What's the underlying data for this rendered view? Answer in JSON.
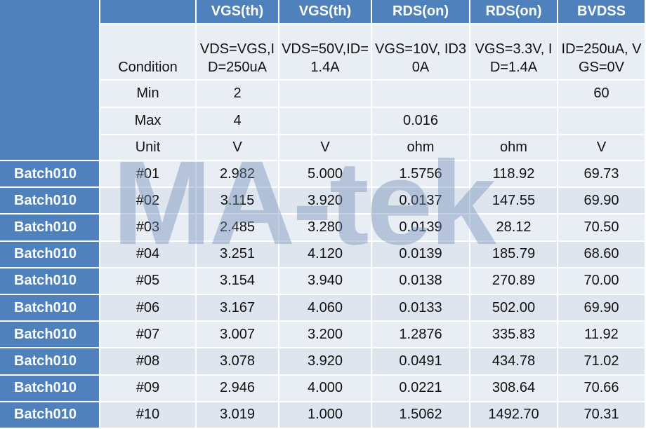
{
  "table": {
    "columns": [
      "VGS(th)",
      "VGS(th)",
      "RDS(on)",
      "RDS(on)",
      "BVDSS"
    ],
    "spec_rows": [
      {
        "label": "Condition",
        "cells": [
          "VDS=VGS,ID=250uA",
          "VDS=50V,ID=1.4A",
          "VGS=10V, ID30A",
          "VGS=3.3V, ID=1.4A",
          "ID=250uA, VGS=0V"
        ]
      },
      {
        "label": "Min",
        "cells": [
          "2",
          null,
          null,
          null,
          "60"
        ]
      },
      {
        "label": "Max",
        "cells": [
          "4",
          null,
          "0.016",
          null,
          null
        ]
      },
      {
        "label": "Unit",
        "cells": [
          "V",
          "V",
          "ohm",
          "ohm",
          "V"
        ]
      }
    ],
    "rows": [
      {
        "batch": "Batch010",
        "id": "#01",
        "cells": [
          "2.982",
          "5.000",
          "1.5756",
          "118.92",
          "69.73"
        ]
      },
      {
        "batch": "Batch010",
        "id": "#02",
        "cells": [
          "3.115",
          "3.920",
          "0.0137",
          "147.55",
          "69.90"
        ]
      },
      {
        "batch": "Batch010",
        "id": "#03",
        "cells": [
          "2.485",
          "3.280",
          "0.0139",
          "28.12",
          "70.50"
        ]
      },
      {
        "batch": "Batch010",
        "id": "#04",
        "cells": [
          "3.251",
          "4.120",
          "0.0139",
          "185.79",
          "68.60"
        ]
      },
      {
        "batch": "Batch010",
        "id": "#05",
        "cells": [
          "3.154",
          "3.940",
          "0.0138",
          "270.89",
          "70.00"
        ]
      },
      {
        "batch": "Batch010",
        "id": "#06",
        "cells": [
          "3.167",
          "4.060",
          "0.0133",
          "502.00",
          "69.90"
        ]
      },
      {
        "batch": "Batch010",
        "id": "#07",
        "cells": [
          "3.007",
          "3.200",
          "1.2876",
          "335.83",
          "11.92"
        ]
      },
      {
        "batch": "Batch010",
        "id": "#08",
        "cells": [
          "3.078",
          "3.920",
          "0.0491",
          "434.78",
          "71.02"
        ]
      },
      {
        "batch": "Batch010",
        "id": "#09",
        "cells": [
          "2.946",
          "4.000",
          "0.0221",
          "308.64",
          "70.66"
        ]
      },
      {
        "batch": "Batch010",
        "id": "#10",
        "cells": [
          "3.019",
          "1.000",
          "1.5062",
          "1492.70",
          "70.31"
        ]
      }
    ],
    "watermark": "MA-tek"
  }
}
